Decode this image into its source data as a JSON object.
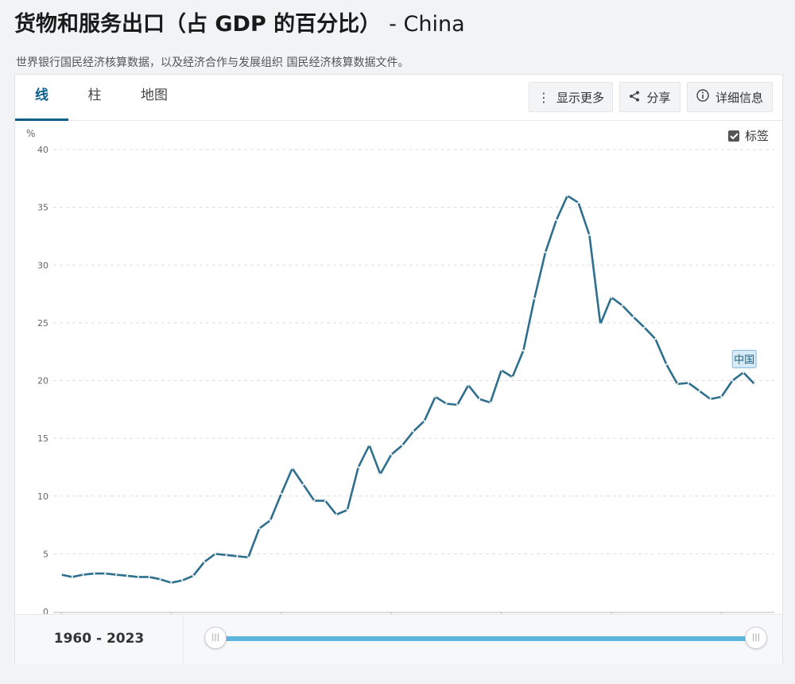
{
  "header": {
    "title": "货物和服务出口（占 GDP 的百分比）",
    "country": "- China",
    "source": "世界银行国民经济核算数据，以及经济合作与发展组织 国民经济核算数据文件。"
  },
  "tabs": [
    {
      "label": "线",
      "active": true
    },
    {
      "label": "柱",
      "active": false
    },
    {
      "label": "地图",
      "active": false
    }
  ],
  "toolbar": {
    "more_label": "显示更多",
    "share_label": "分享",
    "details_label": "详细信息"
  },
  "labels_toggle": {
    "label": "标签",
    "checked": true
  },
  "colors": {
    "line": "#2e6f8e",
    "accent": "#0a5e8a",
    "slider": "#5db4dd"
  },
  "chart_data": {
    "type": "line",
    "ylabel": "%",
    "ylim": [
      0,
      40
    ],
    "yticks": [
      0,
      5,
      10,
      15,
      20,
      25,
      30,
      35,
      40
    ],
    "xlim": [
      1960,
      2023
    ],
    "xticks": [
      1960,
      1970,
      1980,
      1990,
      2000,
      2010,
      2020
    ],
    "grid": true,
    "series": [
      {
        "name": "中国",
        "x": [
          1960,
          1961,
          1962,
          1963,
          1964,
          1965,
          1966,
          1967,
          1968,
          1969,
          1970,
          1971,
          1972,
          1973,
          1974,
          1975,
          1976,
          1977,
          1978,
          1979,
          1980,
          1981,
          1982,
          1983,
          1984,
          1985,
          1986,
          1987,
          1988,
          1989,
          1990,
          1991,
          1992,
          1993,
          1994,
          1995,
          1996,
          1997,
          1998,
          1999,
          2000,
          2001,
          2002,
          2003,
          2004,
          2005,
          2006,
          2007,
          2008,
          2009,
          2010,
          2011,
          2012,
          2013,
          2014,
          2015,
          2016,
          2017,
          2018,
          2019,
          2020,
          2021,
          2022,
          2023
        ],
        "values": [
          3.2,
          3.0,
          3.2,
          3.3,
          3.3,
          3.2,
          3.1,
          3.0,
          3.0,
          2.8,
          2.5,
          2.7,
          3.1,
          4.3,
          5.0,
          4.9,
          4.8,
          4.7,
          7.2,
          7.9,
          10.2,
          12.4,
          11.0,
          9.6,
          9.6,
          8.4,
          8.8,
          12.5,
          14.4,
          11.9,
          13.6,
          14.4,
          15.6,
          16.5,
          18.6,
          18.0,
          17.9,
          19.6,
          18.4,
          18.1,
          20.9,
          20.3,
          22.6,
          27.1,
          31.1,
          33.9,
          36.0,
          35.4,
          32.6,
          24.9,
          27.2,
          26.5,
          25.5,
          24.6,
          23.6,
          21.4,
          19.7,
          19.8,
          19.1,
          18.4,
          18.6,
          20.0,
          20.7,
          19.7
        ]
      }
    ]
  },
  "footer": {
    "range": "1960 - 2023"
  }
}
